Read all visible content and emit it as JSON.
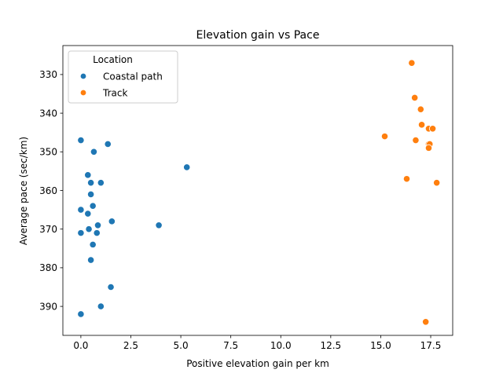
{
  "chart_data": {
    "type": "scatter",
    "title": "Elevation gain vs Pace",
    "xlabel": "Positive elevation gain per km",
    "ylabel": "Average pace (sec/km)",
    "xlim": [
      -0.9,
      18.6
    ],
    "ylim": [
      397.5,
      322.5
    ],
    "y_inverted": true,
    "x_ticks": [
      0.0,
      2.5,
      5.0,
      7.5,
      10.0,
      12.5,
      15.0,
      17.5
    ],
    "x_tick_labels": [
      "0.0",
      "2.5",
      "5.0",
      "7.5",
      "10.0",
      "12.5",
      "15.0",
      "17.5"
    ],
    "y_ticks": [
      330,
      340,
      350,
      360,
      370,
      380,
      390
    ],
    "y_tick_labels": [
      "330",
      "340",
      "350",
      "360",
      "370",
      "380",
      "390"
    ],
    "grid": false,
    "legend": {
      "title": "Location",
      "placement": "upper-left"
    },
    "series": [
      {
        "name": "Coastal path",
        "color": "#1f77b4",
        "points": [
          {
            "x": 0.0,
            "y": 347
          },
          {
            "x": 0.65,
            "y": 350
          },
          {
            "x": 1.35,
            "y": 348
          },
          {
            "x": 5.3,
            "y": 354
          },
          {
            "x": 0.35,
            "y": 356
          },
          {
            "x": 0.5,
            "y": 358
          },
          {
            "x": 1.0,
            "y": 358
          },
          {
            "x": 0.5,
            "y": 361
          },
          {
            "x": 0.6,
            "y": 364
          },
          {
            "x": 0.0,
            "y": 365
          },
          {
            "x": 0.35,
            "y": 366
          },
          {
            "x": 1.55,
            "y": 368
          },
          {
            "x": 3.9,
            "y": 369
          },
          {
            "x": 0.85,
            "y": 369
          },
          {
            "x": 0.4,
            "y": 370
          },
          {
            "x": 0.0,
            "y": 371
          },
          {
            "x": 0.8,
            "y": 371
          },
          {
            "x": 0.6,
            "y": 374
          },
          {
            "x": 0.5,
            "y": 378
          },
          {
            "x": 1.5,
            "y": 385
          },
          {
            "x": 1.0,
            "y": 390
          },
          {
            "x": 0.0,
            "y": 392
          }
        ]
      },
      {
        "name": "Track",
        "color": "#ff7f0e",
        "points": [
          {
            "x": 16.55,
            "y": 327
          },
          {
            "x": 16.7,
            "y": 336
          },
          {
            "x": 17.0,
            "y": 339
          },
          {
            "x": 17.05,
            "y": 343
          },
          {
            "x": 17.4,
            "y": 344
          },
          {
            "x": 17.6,
            "y": 344
          },
          {
            "x": 15.2,
            "y": 346
          },
          {
            "x": 16.75,
            "y": 347
          },
          {
            "x": 17.4,
            "y": 348
          },
          {
            "x": 17.45,
            "y": 348
          },
          {
            "x": 17.4,
            "y": 349
          },
          {
            "x": 16.3,
            "y": 357
          },
          {
            "x": 17.8,
            "y": 358
          },
          {
            "x": 17.25,
            "y": 394
          }
        ]
      }
    ]
  }
}
